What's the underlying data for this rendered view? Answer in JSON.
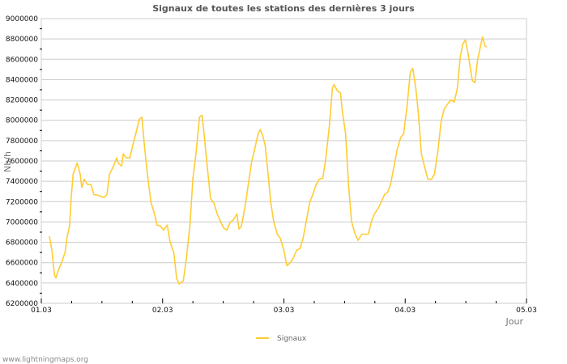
{
  "chart_data": {
    "type": "line",
    "title": "Signaux de toutes les stations des dernières 3 jours",
    "xlabel": "Jour",
    "ylabel": "Nb/h",
    "x_unit": "hours since 01.03 00:00",
    "xlim": [
      0,
      96
    ],
    "ylim": [
      6200000,
      9000000
    ],
    "x_ticks": [
      {
        "value": 0,
        "label": "01.03"
      },
      {
        "value": 24,
        "label": "02.03"
      },
      {
        "value": 48,
        "label": "03.03"
      },
      {
        "value": 72,
        "label": "04.03"
      },
      {
        "value": 96,
        "label": "05.03"
      }
    ],
    "y_ticks": [
      {
        "value": 6200000,
        "label": "6200000"
      },
      {
        "value": 6400000,
        "label": "6400000"
      },
      {
        "value": 6600000,
        "label": "6600000"
      },
      {
        "value": 6800000,
        "label": "6800000"
      },
      {
        "value": 7000000,
        "label": "7000000"
      },
      {
        "value": 7200000,
        "label": "7200000"
      },
      {
        "value": 7400000,
        "label": "7400000"
      },
      {
        "value": 7600000,
        "label": "7600000"
      },
      {
        "value": 7800000,
        "label": "7800000"
      },
      {
        "value": 8000000,
        "label": "8000000"
      },
      {
        "value": 8200000,
        "label": "8200000"
      },
      {
        "value": 8400000,
        "label": "8400000"
      },
      {
        "value": 8600000,
        "label": "8600000"
      },
      {
        "value": 8800000,
        "label": "8800000"
      },
      {
        "value": 9000000,
        "label": "9000000"
      }
    ],
    "grid": true,
    "legend_position": "bottom-center",
    "series": [
      {
        "name": "Signaux",
        "color": "#ffcc33",
        "x": [
          1.6,
          2.1,
          2.6,
          2.9,
          3.4,
          4.0,
          4.7,
          5.1,
          5.6,
          5.9,
          6.3,
          7.1,
          7.7,
          8.0,
          8.5,
          9.1,
          9.8,
          10.4,
          11.4,
          12.4,
          13.0,
          13.5,
          14.3,
          14.9,
          15.2,
          15.9,
          16.2,
          16.8,
          17.5,
          18.1,
          18.8,
          19.4,
          19.9,
          20.4,
          21.0,
          21.7,
          22.3,
          22.9,
          23.6,
          24.2,
          24.9,
          25.5,
          26.2,
          26.8,
          27.3,
          28.1,
          28.7,
          29.4,
          30.0,
          30.6,
          31.3,
          31.8,
          32.2,
          32.9,
          33.5,
          34.2,
          34.8,
          35.5,
          36.1,
          36.7,
          37.4,
          38.0,
          38.7,
          39.1,
          39.6,
          40.3,
          40.9,
          41.6,
          42.2,
          42.8,
          43.3,
          43.8,
          44.3,
          44.8,
          45.4,
          46.0,
          46.7,
          47.3,
          48.0,
          48.6,
          49.3,
          49.9,
          50.5,
          51.2,
          51.8,
          52.5,
          53.1,
          53.7,
          54.4,
          55.0,
          55.7,
          56.3,
          57.0,
          57.6,
          57.9,
          58.6,
          59.2,
          59.5,
          60.2,
          60.8,
          61.4,
          62.1,
          62.7,
          63.4,
          64.0,
          64.7,
          65.3,
          65.9,
          66.6,
          67.2,
          67.9,
          68.5,
          69.1,
          69.8,
          70.4,
          71.1,
          71.7,
          72.4,
          73.0,
          73.5,
          74.1,
          74.6,
          75.2,
          75.9,
          76.5,
          77.2,
          77.8,
          78.5,
          79.1,
          79.7,
          80.4,
          81.0,
          81.7,
          82.3,
          82.9,
          83.4,
          83.9,
          84.4,
          84.9,
          85.3,
          85.8,
          86.3,
          87.0,
          87.3,
          87.8,
          88.1
        ],
        "y": [
          6860000,
          6720000,
          6480000,
          6450000,
          6530000,
          6600000,
          6700000,
          6850000,
          6960000,
          7230000,
          7470000,
          7580000,
          7470000,
          7340000,
          7420000,
          7370000,
          7370000,
          7270000,
          7260000,
          7240000,
          7270000,
          7470000,
          7550000,
          7630000,
          7580000,
          7550000,
          7670000,
          7630000,
          7630000,
          7750000,
          7890000,
          8010000,
          8030000,
          7750000,
          7470000,
          7190000,
          7100000,
          6970000,
          6960000,
          6920000,
          6970000,
          6800000,
          6700000,
          6440000,
          6390000,
          6420000,
          6640000,
          6960000,
          7430000,
          7670000,
          8030000,
          8050000,
          7870000,
          7510000,
          7230000,
          7180000,
          7080000,
          7000000,
          6940000,
          6920000,
          7000000,
          7020000,
          7080000,
          6930000,
          6960000,
          7150000,
          7350000,
          7590000,
          7710000,
          7850000,
          7910000,
          7850000,
          7750000,
          7510000,
          7190000,
          7000000,
          6880000,
          6840000,
          6720000,
          6570000,
          6600000,
          6650000,
          6720000,
          6740000,
          6840000,
          7030000,
          7190000,
          7270000,
          7370000,
          7420000,
          7430000,
          7630000,
          7950000,
          8320000,
          8350000,
          8290000,
          8270000,
          8110000,
          7870000,
          7350000,
          7000000,
          6880000,
          6820000,
          6880000,
          6880000,
          6880000,
          7000000,
          7080000,
          7130000,
          7190000,
          7270000,
          7290000,
          7370000,
          7550000,
          7710000,
          7830000,
          7870000,
          8150000,
          8470000,
          8510000,
          8310000,
          8070000,
          7670000,
          7530000,
          7420000,
          7420000,
          7470000,
          7710000,
          7990000,
          8110000,
          8160000,
          8200000,
          8180000,
          8310000,
          8630000,
          8750000,
          8790000,
          8670000,
          8510000,
          8390000,
          8370000,
          8590000,
          8750000,
          8820000,
          8730000,
          8720000
        ]
      }
    ]
  },
  "footer": "www.lightningmaps.org"
}
